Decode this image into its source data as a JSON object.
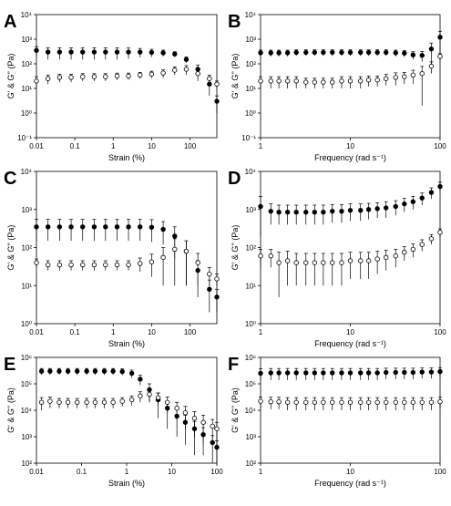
{
  "chart_data": [
    {
      "type": "scatter",
      "label": "A",
      "xlabel": "Strain (%)",
      "ylabel": "G' & G'' (Pa)",
      "log_x": true,
      "log_y": true,
      "xlim": [
        0.01,
        500
      ],
      "xticks": [
        0.01,
        0.1,
        1,
        10,
        100
      ],
      "ylim": [
        0.1,
        10000
      ],
      "yticks": [
        {
          "value": 0.1,
          "label": "10⁻¹"
        },
        {
          "value": 1,
          "label": "10⁰"
        },
        {
          "value": 10,
          "label": "10¹"
        },
        {
          "value": 100,
          "label": "10²"
        },
        {
          "value": 1000,
          "label": "10³"
        },
        {
          "value": 10000,
          "label": "10⁴"
        }
      ],
      "series": [
        {
          "color": "#000000",
          "fill": "#000000",
          "x": [
            0.01,
            0.02,
            0.04,
            0.08,
            0.16,
            0.32,
            0.63,
            1.26,
            2.5,
            5,
            10,
            20,
            40,
            80,
            160,
            320,
            500
          ],
          "values": [
            350,
            300,
            300,
            300,
            300,
            300,
            300,
            300,
            300,
            300,
            290,
            280,
            250,
            150,
            60,
            15,
            3
          ],
          "errors": [
            150,
            150,
            150,
            150,
            150,
            150,
            150,
            150,
            140,
            120,
            100,
            80,
            60,
            40,
            30,
            10,
            2
          ]
        },
        {
          "color": "#000000",
          "fill": "#ffffff",
          "x": [
            0.01,
            0.02,
            0.04,
            0.08,
            0.16,
            0.32,
            0.63,
            1.26,
            2.5,
            5,
            10,
            20,
            40,
            80,
            160,
            320,
            500
          ],
          "values": [
            20,
            25,
            28,
            28,
            30,
            30,
            30,
            32,
            32,
            35,
            38,
            42,
            55,
            60,
            40,
            25,
            15
          ],
          "errors": [
            10,
            10,
            10,
            10,
            10,
            10,
            10,
            10,
            10,
            10,
            12,
            15,
            20,
            25,
            20,
            10,
            5
          ]
        }
      ]
    },
    {
      "type": "scatter",
      "label": "B",
      "xlabel": "Frequency (rad s⁻¹)",
      "ylabel": "G' & G'' (Pa)",
      "log_x": true,
      "log_y": true,
      "xlim": [
        1,
        100
      ],
      "xticks": [
        1,
        10,
        100
      ],
      "ylim": [
        0.1,
        10000
      ],
      "yticks": [
        {
          "value": 0.1,
          "label": "10⁻¹"
        },
        {
          "value": 1,
          "label": "10⁰"
        },
        {
          "value": 10,
          "label": "10¹"
        },
        {
          "value": 100,
          "label": "10²"
        },
        {
          "value": 1000,
          "label": "10³"
        },
        {
          "value": 10000,
          "label": "10⁴"
        }
      ],
      "series": [
        {
          "color": "#000000",
          "fill": "#000000",
          "x": [
            1,
            1.3,
            1.6,
            2,
            2.5,
            3.2,
            4,
            5,
            6.3,
            8,
            10,
            13,
            16,
            20,
            25,
            32,
            40,
            50,
            63,
            80,
            100
          ],
          "values": [
            280,
            280,
            280,
            280,
            290,
            290,
            290,
            290,
            290,
            290,
            290,
            290,
            290,
            290,
            290,
            280,
            270,
            230,
            220,
            400,
            1200
          ],
          "errors": [
            80,
            80,
            80,
            80,
            80,
            80,
            80,
            80,
            80,
            80,
            80,
            80,
            80,
            80,
            80,
            80,
            80,
            80,
            100,
            300,
            900
          ]
        },
        {
          "color": "#000000",
          "fill": "#ffffff",
          "x": [
            1,
            1.3,
            1.6,
            2,
            2.5,
            3.2,
            4,
            5,
            6.3,
            8,
            10,
            13,
            16,
            20,
            25,
            32,
            40,
            50,
            63,
            80,
            100
          ],
          "values": [
            20,
            20,
            20,
            20,
            20,
            18,
            18,
            18,
            18,
            20,
            20,
            20,
            22,
            22,
            25,
            28,
            30,
            35,
            40,
            80,
            200
          ],
          "errors": [
            10,
            10,
            10,
            10,
            10,
            8,
            8,
            8,
            8,
            10,
            10,
            10,
            10,
            10,
            12,
            15,
            15,
            20,
            38,
            40,
            60
          ]
        }
      ]
    },
    {
      "type": "scatter",
      "label": "C",
      "xlabel": "Strain (%)",
      "ylabel": "G' & G'' (Pa)",
      "log_x": true,
      "log_y": true,
      "xlim": [
        0.01,
        500
      ],
      "xticks": [
        0.01,
        0.1,
        1,
        10,
        100
      ],
      "ylim": [
        1,
        10000
      ],
      "yticks": [
        {
          "value": 1,
          "label": "10⁰"
        },
        {
          "value": 10,
          "label": "10¹"
        },
        {
          "value": 100,
          "label": "10²"
        },
        {
          "value": 1000,
          "label": "10³"
        },
        {
          "value": 10000,
          "label": "10⁴"
        }
      ],
      "series": [
        {
          "color": "#000000",
          "fill": "#000000",
          "x": [
            0.01,
            0.02,
            0.04,
            0.08,
            0.16,
            0.32,
            0.63,
            1.26,
            2.5,
            5,
            10,
            20,
            40,
            80,
            160,
            320,
            500
          ],
          "values": [
            350,
            350,
            350,
            350,
            350,
            350,
            350,
            350,
            350,
            350,
            340,
            300,
            200,
            80,
            25,
            8,
            5
          ],
          "errors": [
            200,
            200,
            200,
            200,
            200,
            200,
            200,
            200,
            200,
            200,
            200,
            180,
            150,
            70,
            20,
            6,
            3
          ]
        },
        {
          "color": "#000000",
          "fill": "#ffffff",
          "x": [
            0.01,
            0.02,
            0.04,
            0.08,
            0.16,
            0.32,
            0.63,
            1.26,
            2.5,
            5,
            10,
            20,
            40,
            80,
            160,
            320,
            500
          ],
          "values": [
            40,
            35,
            35,
            35,
            35,
            35,
            35,
            35,
            35,
            38,
            42,
            55,
            90,
            80,
            40,
            20,
            15
          ],
          "errors": [
            10,
            10,
            10,
            10,
            10,
            10,
            10,
            10,
            10,
            15,
            25,
            45,
            80,
            70,
            30,
            10,
            5
          ]
        }
      ]
    },
    {
      "type": "scatter",
      "label": "D",
      "xlabel": "Frequency (rad s⁻¹)",
      "ylabel": "G' & G'' (Pa)",
      "log_x": true,
      "log_y": true,
      "xlim": [
        1,
        100
      ],
      "xticks": [
        1,
        10,
        100
      ],
      "ylim": [
        1,
        10000
      ],
      "yticks": [
        {
          "value": 1,
          "label": "10⁰"
        },
        {
          "value": 10,
          "label": "10¹"
        },
        {
          "value": 100,
          "label": "10²"
        },
        {
          "value": 1000,
          "label": "10³"
        },
        {
          "value": 10000,
          "label": "10⁴"
        }
      ],
      "series": [
        {
          "color": "#000000",
          "fill": "#000000",
          "x": [
            1,
            1.3,
            1.6,
            2,
            2.5,
            3.2,
            4,
            5,
            6.3,
            8,
            10,
            13,
            16,
            20,
            25,
            32,
            40,
            50,
            63,
            80,
            100
          ],
          "values": [
            1200,
            900,
            850,
            850,
            850,
            850,
            850,
            850,
            900,
            900,
            950,
            950,
            1000,
            1050,
            1100,
            1200,
            1400,
            1600,
            2000,
            2800,
            4000
          ],
          "errors": [
            1000,
            500,
            450,
            450,
            450,
            450,
            450,
            450,
            450,
            450,
            450,
            450,
            450,
            450,
            500,
            500,
            550,
            600,
            700,
            900,
            1200
          ]
        },
        {
          "color": "#000000",
          "fill": "#ffffff",
          "x": [
            1,
            1.3,
            1.6,
            2,
            2.5,
            3.2,
            4,
            5,
            6.3,
            8,
            10,
            13,
            16,
            20,
            25,
            32,
            40,
            50,
            63,
            80,
            100
          ],
          "values": [
            60,
            60,
            40,
            45,
            40,
            40,
            40,
            40,
            40,
            40,
            45,
            45,
            45,
            50,
            55,
            60,
            75,
            90,
            120,
            170,
            250
          ],
          "errors": [
            30,
            30,
            35,
            35,
            30,
            30,
            30,
            30,
            30,
            30,
            30,
            30,
            30,
            30,
            30,
            30,
            30,
            35,
            40,
            50,
            60
          ]
        }
      ]
    },
    {
      "type": "scatter",
      "label": "E",
      "xlabel": "Strain (%)",
      "ylabel": "G' & G'' (Pa)",
      "log_x": true,
      "log_y": true,
      "xlim": [
        0.01,
        100
      ],
      "xticks": [
        0.01,
        0.1,
        1,
        10,
        100
      ],
      "ylim": [
        100,
        1000000
      ],
      "yticks": [
        {
          "value": 100,
          "label": "10²"
        },
        {
          "value": 1000,
          "label": "10³"
        },
        {
          "value": 10000,
          "label": "10⁴"
        },
        {
          "value": 100000,
          "label": "10⁵"
        },
        {
          "value": 1000000,
          "label": "10⁶"
        }
      ],
      "series": [
        {
          "color": "#000000",
          "fill": "#000000",
          "x": [
            0.013,
            0.02,
            0.032,
            0.05,
            0.08,
            0.13,
            0.2,
            0.32,
            0.5,
            0.8,
            1.3,
            2,
            3.2,
            5,
            8,
            13,
            20,
            32,
            50,
            80,
            100
          ],
          "values": [
            300000,
            300000,
            300000,
            300000,
            300000,
            300000,
            300000,
            300000,
            300000,
            290000,
            250000,
            150000,
            60000,
            25000,
            12000,
            6000,
            3500,
            2000,
            1200,
            600,
            400
          ],
          "errors": [
            80000,
            80000,
            80000,
            80000,
            80000,
            80000,
            80000,
            80000,
            80000,
            80000,
            80000,
            60000,
            40000,
            20000,
            10000,
            5000,
            3000,
            1800,
            1000,
            500,
            300
          ]
        },
        {
          "color": "#000000",
          "fill": "#ffffff",
          "x": [
            0.013,
            0.02,
            0.032,
            0.05,
            0.08,
            0.13,
            0.2,
            0.32,
            0.5,
            0.8,
            1.3,
            2,
            3.2,
            5,
            8,
            13,
            20,
            32,
            50,
            80,
            100
          ],
          "values": [
            20000,
            22000,
            20000,
            20000,
            20000,
            20000,
            20000,
            20000,
            20000,
            22000,
            25000,
            35000,
            40000,
            30000,
            20000,
            12000,
            8000,
            5000,
            3500,
            2500,
            2000
          ],
          "errors": [
            10000,
            10000,
            8000,
            8000,
            8000,
            8000,
            8000,
            8000,
            8000,
            8000,
            10000,
            15000,
            20000,
            15000,
            12000,
            8000,
            6000,
            4000,
            3000,
            2000,
            1500
          ]
        }
      ]
    },
    {
      "type": "scatter",
      "label": "F",
      "xlabel": "Frequency (rad s⁻¹)",
      "ylabel": "G' & G'' (Pa)",
      "log_x": true,
      "log_y": true,
      "xlim": [
        1,
        100
      ],
      "xticks": [
        1,
        10,
        100
      ],
      "ylim": [
        100,
        1000000
      ],
      "yticks": [
        {
          "value": 100,
          "label": "10²"
        },
        {
          "value": 1000,
          "label": "10³"
        },
        {
          "value": 10000,
          "label": "10⁴"
        },
        {
          "value": 100000,
          "label": "10⁵"
        },
        {
          "value": 1000000,
          "label": "10⁶"
        }
      ],
      "series": [
        {
          "color": "#000000",
          "fill": "#000000",
          "x": [
            1,
            1.3,
            1.6,
            2,
            2.5,
            3.2,
            4,
            5,
            6.3,
            8,
            10,
            13,
            16,
            20,
            25,
            32,
            40,
            50,
            63,
            80,
            100
          ],
          "values": [
            250000,
            260000,
            260000,
            260000,
            260000,
            260000,
            260000,
            260000,
            260000,
            260000,
            260000,
            260000,
            260000,
            260000,
            270000,
            270000,
            270000,
            270000,
            280000,
            280000,
            290000
          ],
          "errors": [
            120000,
            120000,
            120000,
            120000,
            120000,
            120000,
            120000,
            120000,
            120000,
            120000,
            120000,
            120000,
            120000,
            120000,
            120000,
            120000,
            120000,
            120000,
            120000,
            120000,
            120000
          ]
        },
        {
          "color": "#000000",
          "fill": "#ffffff",
          "x": [
            1,
            1.3,
            1.6,
            2,
            2.5,
            3.2,
            4,
            5,
            6.3,
            8,
            10,
            13,
            16,
            20,
            25,
            32,
            40,
            50,
            63,
            80,
            100
          ],
          "values": [
            22000,
            21000,
            21000,
            20000,
            20000,
            20000,
            20000,
            20000,
            20000,
            20000,
            20000,
            20000,
            20000,
            20000,
            20000,
            20000,
            20000,
            20000,
            20000,
            20000,
            21000
          ],
          "errors": [
            10000,
            10000,
            10000,
            10000,
            10000,
            10000,
            10000,
            10000,
            10000,
            10000,
            10000,
            10000,
            10000,
            10000,
            10000,
            10000,
            10000,
            10000,
            10000,
            10000,
            10000
          ]
        }
      ]
    }
  ]
}
